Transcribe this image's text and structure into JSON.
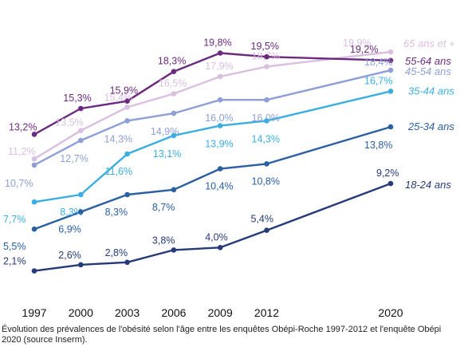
{
  "caption": "Évolution des prévalences de l'obésité selon l'âge entre les enquêtes Obépi-Roche 1997-2012 et l'enquête Obépi 2020 (source Inserm).",
  "chart_data": {
    "type": "line",
    "title": "",
    "xlabel": "",
    "ylabel": "",
    "x": [
      1997,
      2000,
      2003,
      2006,
      2009,
      2012,
      2020
    ],
    "x_tick_labels": [
      "1997",
      "2000",
      "2003",
      "2006",
      "2009",
      "2012",
      "2020"
    ],
    "grid": false,
    "legend": "series names printed at the right end of each line",
    "series": [
      {
        "name": "65 ans et +",
        "color": "#d9bfe0",
        "values": [
          11.2,
          13.5,
          15.4,
          16.5,
          17.9,
          18.7,
          19.9
        ],
        "labels": [
          "11,2%",
          "13,5%",
          "15,4%",
          "16,5%",
          "17,9%",
          "18,7%",
          "19,9%"
        ]
      },
      {
        "name": "55-64 ans",
        "color": "#6b2a7e",
        "values": [
          13.2,
          15.3,
          15.9,
          18.3,
          19.8,
          19.5,
          19.2
        ],
        "labels": [
          "13,2%",
          "15,3%",
          "15,9%",
          "18,3%",
          "19,8%",
          "19,5%",
          "19,2%"
        ]
      },
      {
        "name": "45-54 ans",
        "color": "#8e9fd6",
        "values": [
          10.7,
          12.7,
          14.3,
          14.9,
          16.0,
          16.0,
          18.4
        ],
        "labels": [
          "10,7%",
          "12,7%",
          "14,3%",
          "14,9%",
          "16,0%",
          "16,0%",
          "18,4%"
        ]
      },
      {
        "name": "35-44 ans",
        "color": "#3aaee0",
        "values": [
          7.7,
          8.3,
          11.6,
          13.1,
          13.9,
          14.3,
          16.7
        ],
        "labels": [
          "7,7%",
          "8,3%",
          "11,6%",
          "13,1%",
          "13,9%",
          "14,3%",
          "16,7%"
        ]
      },
      {
        "name": "25-34 ans",
        "color": "#2a5fa3",
        "values": [
          5.5,
          6.9,
          8.3,
          8.7,
          10.4,
          10.8,
          13.8
        ],
        "labels": [
          "5,5%",
          "6,9%",
          "8,3%",
          "8,7%",
          "10,4%",
          "10,8%",
          "13,8%"
        ]
      },
      {
        "name": "18-24 ans",
        "color": "#253a78",
        "values": [
          2.1,
          2.6,
          2.8,
          3.8,
          4.0,
          5.4,
          9.2
        ],
        "labels": [
          "2,1%",
          "2,6%",
          "2,8%",
          "3,8%",
          "4,0%",
          "5,4%",
          "9,2%"
        ]
      }
    ]
  }
}
